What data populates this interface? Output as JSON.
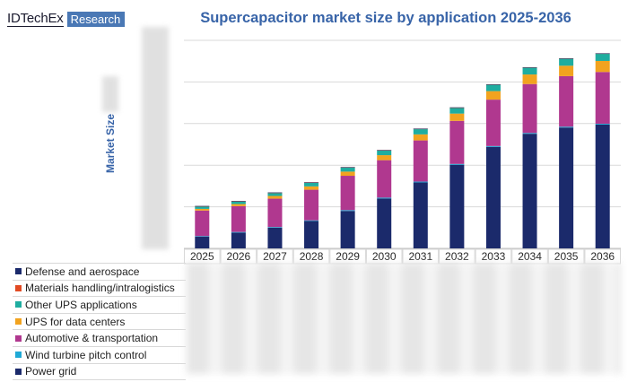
{
  "header": {
    "brand": "IDTechEx",
    "brand_badge": "Research"
  },
  "chart_data": {
    "type": "bar",
    "stacked": true,
    "title": "Supercapacitor market size by application 2025-2036",
    "ylabel": "Market Size",
    "xlabel": "",
    "categories": [
      "2025",
      "2026",
      "2027",
      "2028",
      "2029",
      "2030",
      "2031",
      "2032",
      "2033",
      "2034",
      "2035",
      "2036"
    ],
    "ylim": [
      0,
      100
    ],
    "grid": true,
    "legend_placement": "bottom-left table",
    "series": [
      {
        "name": "Power grid",
        "color": "#1b2a6b",
        "values": [
          5.6,
          7.6,
          10.0,
          13.2,
          18.0,
          24.0,
          31.7,
          40.2,
          48.8,
          55.1,
          58.1,
          59.5
        ]
      },
      {
        "name": "Wind turbine pitch control",
        "color": "#1fa9d6",
        "values": [
          0.3,
          0.3,
          0.3,
          0.3,
          0.4,
          0.4,
          0.4,
          0.4,
          0.4,
          0.4,
          0.4,
          0.4
        ]
      },
      {
        "name": "Automotive & transportation",
        "color": "#b0388f",
        "values": [
          12.3,
          12.4,
          13.6,
          14.7,
          16.5,
          18.0,
          19.8,
          20.7,
          22.3,
          23.5,
          24.3,
          24.9
        ]
      },
      {
        "name": "UPS for data centers",
        "color": "#f2a31f",
        "values": [
          0.8,
          1.0,
          1.3,
          1.6,
          2.0,
          2.4,
          2.9,
          3.5,
          4.1,
          4.6,
          5.0,
          5.3
        ]
      },
      {
        "name": "Other UPS applications",
        "color": "#1fada0",
        "values": [
          1.2,
          1.3,
          1.5,
          1.8,
          2.0,
          2.3,
          2.6,
          2.8,
          3.1,
          3.3,
          3.4,
          3.5
        ]
      },
      {
        "name": "Materials handling/intralogistics",
        "color": "#e24a23",
        "values": [
          0.1,
          0.1,
          0.1,
          0.1,
          0.1,
          0.1,
          0.1,
          0.1,
          0.1,
          0.1,
          0.1,
          0.1
        ]
      },
      {
        "name": "Defense and aerospace",
        "color": "#1b2a6b",
        "values": [
          0.1,
          0.1,
          0.1,
          0.1,
          0.1,
          0.1,
          0.1,
          0.1,
          0.1,
          0.1,
          0.1,
          0.1
        ]
      }
    ],
    "legend_order": [
      "Defense and aerospace",
      "Materials handling/intralogistics",
      "Other UPS applications",
      "UPS for data centers",
      "Automotive & transportation",
      "Wind turbine pitch control",
      "Power grid"
    ]
  }
}
